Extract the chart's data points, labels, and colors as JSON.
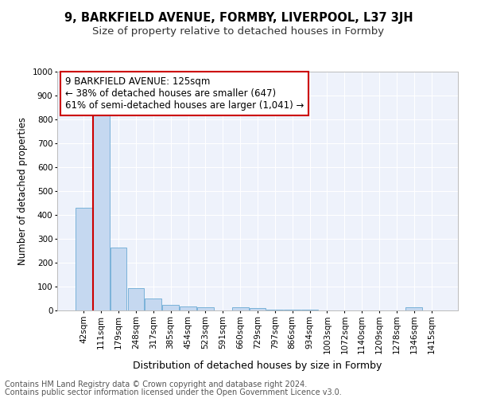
{
  "title1": "9, BARKFIELD AVENUE, FORMBY, LIVERPOOL, L37 3JH",
  "title2": "Size of property relative to detached houses in Formby",
  "xlabel": "Distribution of detached houses by size in Formby",
  "ylabel": "Number of detached properties",
  "categories": [
    "42sqm",
    "111sqm",
    "179sqm",
    "248sqm",
    "317sqm",
    "385sqm",
    "454sqm",
    "523sqm",
    "591sqm",
    "660sqm",
    "729sqm",
    "797sqm",
    "866sqm",
    "934sqm",
    "1003sqm",
    "1072sqm",
    "1140sqm",
    "1209sqm",
    "1278sqm",
    "1346sqm",
    "1415sqm"
  ],
  "values": [
    430,
    820,
    265,
    93,
    50,
    25,
    18,
    12,
    0,
    12,
    10,
    2,
    2,
    2,
    0,
    0,
    0,
    0,
    0,
    12,
    0
  ],
  "bar_color": "#c5d8f0",
  "bar_edge_color": "#6aaad4",
  "vline_color": "#cc0000",
  "annotation_text": "9 BARKFIELD AVENUE: 125sqm\n← 38% of detached houses are smaller (647)\n61% of semi-detached houses are larger (1,041) →",
  "annotation_box_color": "#ffffff",
  "annotation_box_edge": "#cc0000",
  "ylim": [
    0,
    1000
  ],
  "yticks": [
    0,
    100,
    200,
    300,
    400,
    500,
    600,
    700,
    800,
    900,
    1000
  ],
  "footer1": "Contains HM Land Registry data © Crown copyright and database right 2024.",
  "footer2": "Contains public sector information licensed under the Open Government Licence v3.0.",
  "bg_color": "#eef2fb",
  "grid_color": "#ffffff",
  "title1_fontsize": 10.5,
  "title2_fontsize": 9.5,
  "xlabel_fontsize": 9,
  "ylabel_fontsize": 8.5,
  "tick_fontsize": 7.5,
  "annotation_fontsize": 8.5,
  "footer_fontsize": 7
}
